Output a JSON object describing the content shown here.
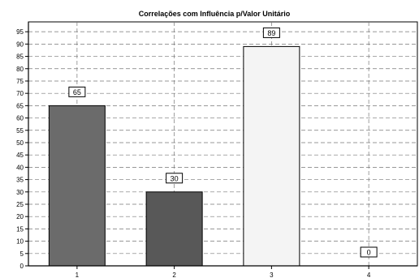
{
  "chart_data": {
    "type": "bar",
    "title": "Correlações com Influência p/Valor Unitário",
    "xlabel": "",
    "ylabel": "",
    "categories": [
      "1",
      "2",
      "3",
      "4"
    ],
    "values": [
      65,
      30,
      89,
      0
    ],
    "value_labels": [
      "65",
      "30",
      "89",
      "0"
    ],
    "bar_colors": [
      "#6b6b6b",
      "#585858",
      "#f4f4f4",
      "#ffffff"
    ],
    "ylim": [
      0,
      99
    ],
    "yticks": [
      0,
      5,
      10,
      15,
      20,
      25,
      30,
      35,
      40,
      45,
      50,
      55,
      60,
      65,
      70,
      75,
      80,
      85,
      90,
      95
    ],
    "grid": true,
    "legend": "none"
  }
}
